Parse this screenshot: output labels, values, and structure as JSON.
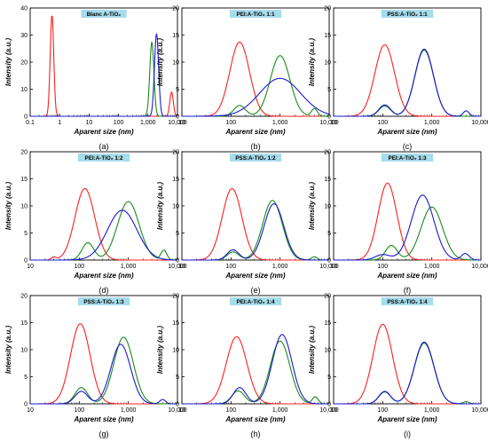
{
  "colors": {
    "red": "#ff1e1e",
    "green": "#1a8a1a",
    "blue": "#1a1ad0",
    "title_box": "#a7dcec"
  },
  "chart_data": [
    {
      "type": "line",
      "panel_label": "(a)",
      "title": "Blanc A-TiO₂",
      "xlabel": "Aparent size (nm)",
      "ylabel": "Intensity (a.u.)",
      "xscale": "log",
      "xlim": [
        0.1,
        10000
      ],
      "xticks": [
        "0.1",
        "1",
        "10",
        "100",
        "1,000",
        "10,000"
      ],
      "ylim": [
        0,
        40
      ],
      "yticks": [
        "0",
        "10",
        "20",
        "30",
        "40"
      ],
      "series": [
        {
          "color": "red",
          "peaks": [
            {
              "x": 0.55,
              "y": 37.5,
              "w": 0.06
            },
            {
              "x": 6300,
              "y": 9,
              "w": 0.06
            }
          ]
        },
        {
          "color": "green",
          "peaks": [
            {
              "x": 1350,
              "y": 27.5,
              "w": 0.07
            }
          ]
        },
        {
          "color": "blue",
          "peaks": [
            {
              "x": 1950,
              "y": 30.5,
              "w": 0.07
            }
          ]
        }
      ]
    },
    {
      "type": "line",
      "panel_label": "(b)",
      "title": "PEI:A-TiO₂ 1:1",
      "xlabel": "Aparent size (nm)",
      "ylabel": "Intensity (a.u.)",
      "xscale": "log",
      "xlim": [
        10,
        10000
      ],
      "xticks": [
        "10",
        "100",
        "1,000",
        "10,000"
      ],
      "ylim": [
        0,
        20
      ],
      "yticks": [
        "0",
        "5",
        "10",
        "15",
        "20"
      ],
      "series": [
        {
          "color": "red",
          "peaks": [
            {
              "x": 150,
              "y": 13.7,
              "w": 0.2
            }
          ]
        },
        {
          "color": "green",
          "peaks": [
            {
              "x": 150,
              "y": 2,
              "w": 0.12
            },
            {
              "x": 1000,
              "y": 11.2,
              "w": 0.2
            },
            {
              "x": 5000,
              "y": 1.4,
              "w": 0.06
            }
          ]
        },
        {
          "color": "blue",
          "peaks": [
            {
              "x": 1000,
              "y": 7,
              "w": 0.42
            }
          ]
        }
      ]
    },
    {
      "type": "line",
      "panel_label": "(c)",
      "title": "PSS:A-TiO₂ 1:1",
      "xlabel": "Aparent size (nm)",
      "ylabel": "Intensity (a.u.)",
      "xscale": "log",
      "xlim": [
        10,
        10000
      ],
      "xticks": [
        "10",
        "100",
        "1,000",
        "10,000"
      ],
      "ylim": [
        0,
        20
      ],
      "yticks": [
        "0",
        "5",
        "10",
        "15",
        "20"
      ],
      "series": [
        {
          "color": "red",
          "peaks": [
            {
              "x": 110,
              "y": 13.2,
              "w": 0.2
            }
          ]
        },
        {
          "color": "green",
          "peaks": [
            {
              "x": 110,
              "y": 1.9,
              "w": 0.12
            },
            {
              "x": 700,
              "y": 12.2,
              "w": 0.19
            }
          ]
        },
        {
          "color": "blue",
          "peaks": [
            {
              "x": 110,
              "y": 2.1,
              "w": 0.12
            },
            {
              "x": 700,
              "y": 12.4,
              "w": 0.19
            },
            {
              "x": 5000,
              "y": 1,
              "w": 0.06
            }
          ]
        }
      ]
    },
    {
      "type": "line",
      "panel_label": "(d)",
      "title": "PEI:A-TiO₂ 1:2",
      "xlabel": "Aparent size (nm)",
      "ylabel": "Intensity (a.u.)",
      "xscale": "log",
      "xlim": [
        10,
        10000
      ],
      "xticks": [
        "10",
        "100",
        "1,000",
        "10,000"
      ],
      "ylim": [
        0,
        20
      ],
      "yticks": [
        "0",
        "5",
        "10",
        "15",
        "20"
      ],
      "series": [
        {
          "color": "red",
          "peaks": [
            {
              "x": 30,
              "y": 0.5,
              "w": 0.05
            },
            {
              "x": 130,
              "y": 13.2,
              "w": 0.2
            }
          ]
        },
        {
          "color": "green",
          "peaks": [
            {
              "x": 150,
              "y": 3.2,
              "w": 0.12
            },
            {
              "x": 1000,
              "y": 10.8,
              "w": 0.22
            },
            {
              "x": 5300,
              "y": 1.8,
              "w": 0.06
            }
          ]
        },
        {
          "color": "blue",
          "peaks": [
            {
              "x": 750,
              "y": 9.2,
              "w": 0.3
            }
          ]
        }
      ]
    },
    {
      "type": "line",
      "panel_label": "(e)",
      "title": "PSS:A-TiO₂ 1:2",
      "xlabel": "Aparent size (nm)",
      "ylabel": "Intensity (a.u.)",
      "xscale": "log",
      "xlim": [
        10,
        10000
      ],
      "xticks": [
        "10",
        "100",
        "1,000",
        "10,000"
      ],
      "ylim": [
        0,
        20
      ],
      "yticks": [
        "0",
        "5",
        "10",
        "15",
        "20"
      ],
      "series": [
        {
          "color": "red",
          "peaks": [
            {
              "x": 105,
              "y": 13.2,
              "w": 0.2
            }
          ]
        },
        {
          "color": "green",
          "peaks": [
            {
              "x": 110,
              "y": 1.5,
              "w": 0.12
            },
            {
              "x": 700,
              "y": 11,
              "w": 0.2
            },
            {
              "x": 5000,
              "y": 0.6,
              "w": 0.06
            }
          ]
        },
        {
          "color": "blue",
          "peaks": [
            {
              "x": 110,
              "y": 1.9,
              "w": 0.12
            },
            {
              "x": 750,
              "y": 10.4,
              "w": 0.2
            }
          ]
        }
      ]
    },
    {
      "type": "line",
      "panel_label": "(f)",
      "title": "PEI:A-TiO₂ 1:3",
      "xlabel": "Aparent size (nm)",
      "ylabel": "Intensity (a.u.)",
      "xscale": "log",
      "xlim": [
        10,
        10000
      ],
      "xticks": [
        "10",
        "100",
        "1,000",
        "10,000"
      ],
      "ylim": [
        0,
        20
      ],
      "yticks": [
        "0",
        "5",
        "10",
        "15",
        "20"
      ],
      "series": [
        {
          "color": "red",
          "peaks": [
            {
              "x": 125,
              "y": 14.2,
              "w": 0.19
            }
          ]
        },
        {
          "color": "green",
          "peaks": [
            {
              "x": 150,
              "y": 2.7,
              "w": 0.12
            },
            {
              "x": 1000,
              "y": 9.8,
              "w": 0.22
            }
          ]
        },
        {
          "color": "blue",
          "peaks": [
            {
              "x": 100,
              "y": 1,
              "w": 0.15
            },
            {
              "x": 650,
              "y": 12,
              "w": 0.23
            },
            {
              "x": 4800,
              "y": 1.2,
              "w": 0.08
            }
          ]
        }
      ]
    },
    {
      "type": "line",
      "panel_label": "(g)",
      "title": "PSS:A-TiO₂ 1:3",
      "xlabel": "Aparent size (nm)",
      "ylabel": "Intensity (a.u.)",
      "xscale": "log",
      "xlim": [
        10,
        10000
      ],
      "xticks": [
        "10",
        "100",
        "1,000",
        "10,000"
      ],
      "ylim": [
        0,
        20
      ],
      "yticks": [
        "0",
        "5",
        "10",
        "15",
        "20"
      ],
      "series": [
        {
          "color": "red",
          "peaks": [
            {
              "x": 105,
              "y": 14.8,
              "w": 0.2
            }
          ]
        },
        {
          "color": "green",
          "peaks": [
            {
              "x": 110,
              "y": 3,
              "w": 0.13
            },
            {
              "x": 800,
              "y": 12.3,
              "w": 0.2
            }
          ]
        },
        {
          "color": "blue",
          "peaks": [
            {
              "x": 110,
              "y": 2.3,
              "w": 0.13
            },
            {
              "x": 700,
              "y": 11,
              "w": 0.2
            },
            {
              "x": 5000,
              "y": 0.8,
              "w": 0.06
            }
          ]
        }
      ]
    },
    {
      "type": "line",
      "panel_label": "(h)",
      "title": "PEI:A-TiO₂ 1:4",
      "xlabel": "Aparent size (nm)",
      "ylabel": "Intensity (a.u.)",
      "xscale": "log",
      "xlim": [
        10,
        10000
      ],
      "xticks": [
        "10",
        "100",
        "1,000",
        "10,000"
      ],
      "ylim": [
        0,
        20
      ],
      "yticks": [
        "0",
        "5",
        "10",
        "15",
        "20"
      ],
      "series": [
        {
          "color": "red",
          "peaks": [
            {
              "x": 130,
              "y": 12.4,
              "w": 0.21
            }
          ]
        },
        {
          "color": "green",
          "peaks": [
            {
              "x": 140,
              "y": 2.4,
              "w": 0.13
            },
            {
              "x": 1000,
              "y": 11.6,
              "w": 0.2
            },
            {
              "x": 5200,
              "y": 1.3,
              "w": 0.06
            }
          ]
        },
        {
          "color": "blue",
          "peaks": [
            {
              "x": 150,
              "y": 3,
              "w": 0.13
            },
            {
              "x": 1100,
              "y": 12.8,
              "w": 0.2
            }
          ]
        }
      ]
    },
    {
      "type": "line",
      "panel_label": "(i)",
      "title": "PSS:A-TiO₂ 1:4",
      "xlabel": "Aparent size (nm)",
      "ylabel": "Intensity (a.u.)",
      "xscale": "log",
      "xlim": [
        10,
        10000
      ],
      "xticks": [
        "10",
        "100",
        "1,000",
        "10,000"
      ],
      "ylim": [
        0,
        20
      ],
      "yticks": [
        "0",
        "5",
        "10",
        "15",
        "20"
      ],
      "series": [
        {
          "color": "red",
          "peaks": [
            {
              "x": 100,
              "y": 14.7,
              "w": 0.2
            }
          ]
        },
        {
          "color": "green",
          "peaks": [
            {
              "x": 110,
              "y": 2.2,
              "w": 0.12
            },
            {
              "x": 700,
              "y": 11.2,
              "w": 0.2
            },
            {
              "x": 5000,
              "y": 0.4,
              "w": 0.06
            }
          ]
        },
        {
          "color": "blue",
          "peaks": [
            {
              "x": 110,
              "y": 2.3,
              "w": 0.12
            },
            {
              "x": 700,
              "y": 11.4,
              "w": 0.2
            }
          ]
        }
      ]
    }
  ]
}
